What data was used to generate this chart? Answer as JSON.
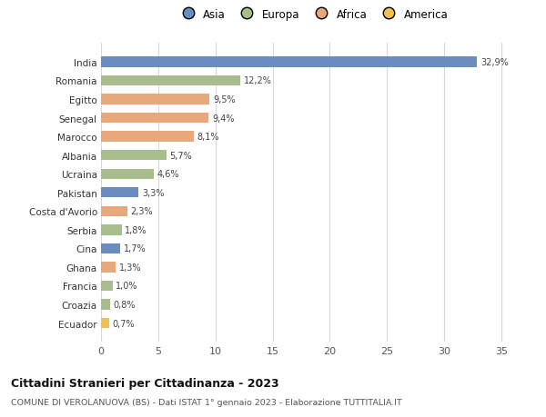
{
  "countries": [
    "India",
    "Romania",
    "Egitto",
    "Senegal",
    "Marocco",
    "Albania",
    "Ucraina",
    "Pakistan",
    "Costa d'Avorio",
    "Serbia",
    "Cina",
    "Ghana",
    "Francia",
    "Croazia",
    "Ecuador"
  ],
  "values": [
    32.9,
    12.2,
    9.5,
    9.4,
    8.1,
    5.7,
    4.6,
    3.3,
    2.3,
    1.8,
    1.7,
    1.3,
    1.0,
    0.8,
    0.7
  ],
  "labels": [
    "32,9%",
    "12,2%",
    "9,5%",
    "9,4%",
    "8,1%",
    "5,7%",
    "4,6%",
    "3,3%",
    "2,3%",
    "1,8%",
    "1,7%",
    "1,3%",
    "1,0%",
    "0,8%",
    "0,7%"
  ],
  "continents": [
    "Asia",
    "Europa",
    "Africa",
    "Africa",
    "Africa",
    "Europa",
    "Europa",
    "Asia",
    "Africa",
    "Europa",
    "Asia",
    "Africa",
    "Europa",
    "Europa",
    "America"
  ],
  "colors": {
    "Asia": "#6b8cbf",
    "Europa": "#a8bc8c",
    "Africa": "#e8a87c",
    "America": "#f0c050"
  },
  "xlim": [
    0,
    37
  ],
  "xticks": [
    0,
    5,
    10,
    15,
    20,
    25,
    30,
    35
  ],
  "title": "Cittadini Stranieri per Cittadinanza - 2023",
  "subtitle": "COMUNE DI VEROLANUOVA (BS) - Dati ISTAT 1° gennaio 2023 - Elaborazione TUTTITALIA.IT",
  "background_color": "#ffffff",
  "grid_color": "#d8d8d8",
  "bar_height": 0.55,
  "legend_entries": [
    "Asia",
    "Europa",
    "Africa",
    "America"
  ]
}
